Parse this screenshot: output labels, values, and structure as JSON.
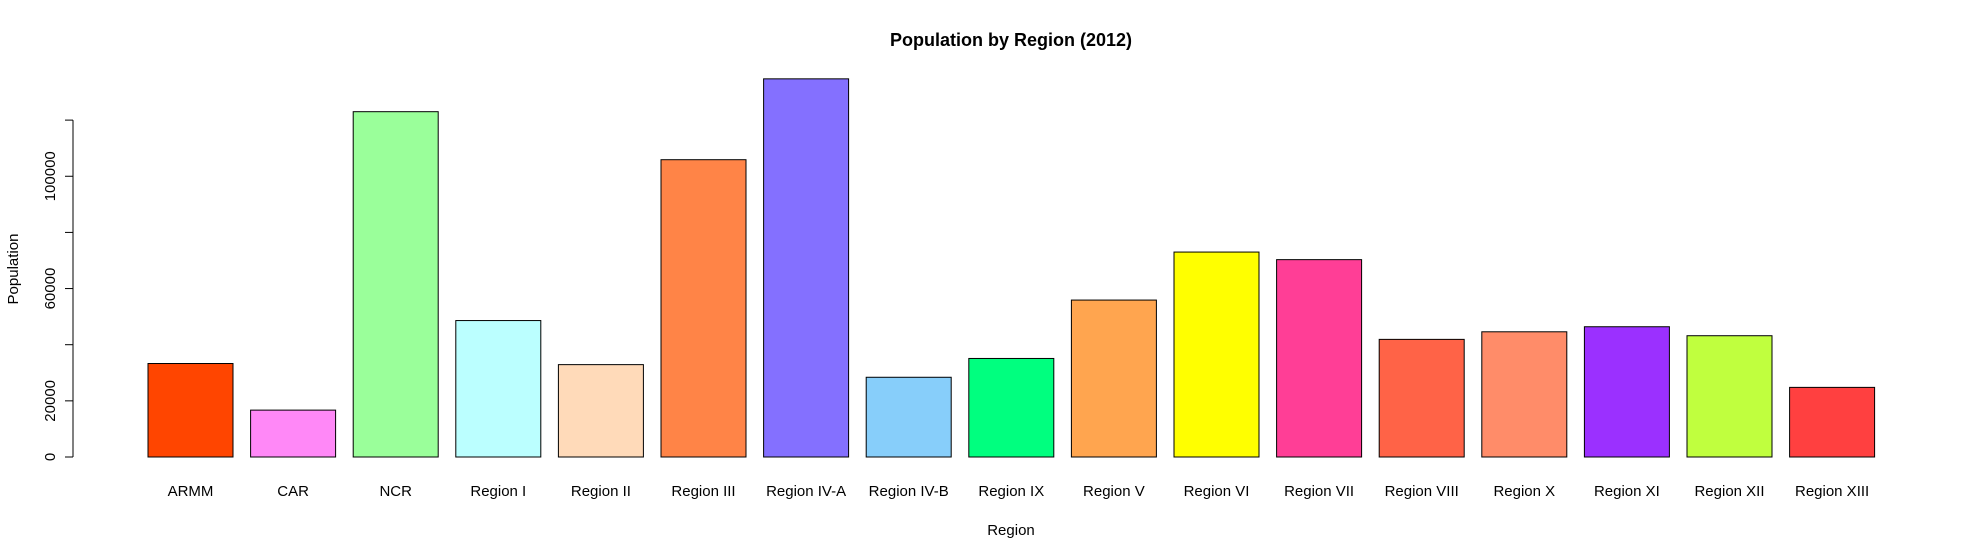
{
  "chart_data": {
    "type": "bar",
    "title": "Population by Region (2012)",
    "x_label": "Region",
    "y_label": "Population",
    "categories": [
      "ARMM",
      "CAR",
      "NCR",
      "Region I",
      "Region II",
      "Region III",
      "Region IV-A",
      "Region IV-B",
      "Region IX",
      "Region V",
      "Region VI",
      "Region VII",
      "Region VIII",
      "Region X",
      "Region XI",
      "Region XII",
      "Region XIII"
    ],
    "values": [
      33300,
      16700,
      123000,
      48600,
      32900,
      105900,
      134700,
      28400,
      35100,
      55900,
      73000,
      70300,
      41900,
      44600,
      46400,
      43200,
      24800
    ],
    "colors": [
      "#ff4500",
      "#ff88f7",
      "#9aff9a",
      "#bbffff",
      "#ffdab9",
      "#ff8447",
      "#8470ff",
      "#87cefa",
      "#00ff7f",
      "#ffa54f",
      "#ffff00",
      "#ff3e96",
      "#ff6347",
      "#ff8c69",
      "#9b30ff",
      "#c0ff3e",
      "#ff4040"
    ],
    "ylim": [
      0,
      135000
    ],
    "yticks": [
      0,
      20000,
      60000,
      100000
    ],
    "yticks_unlabeled": [
      40000,
      80000,
      120000
    ],
    "grid": false
  }
}
